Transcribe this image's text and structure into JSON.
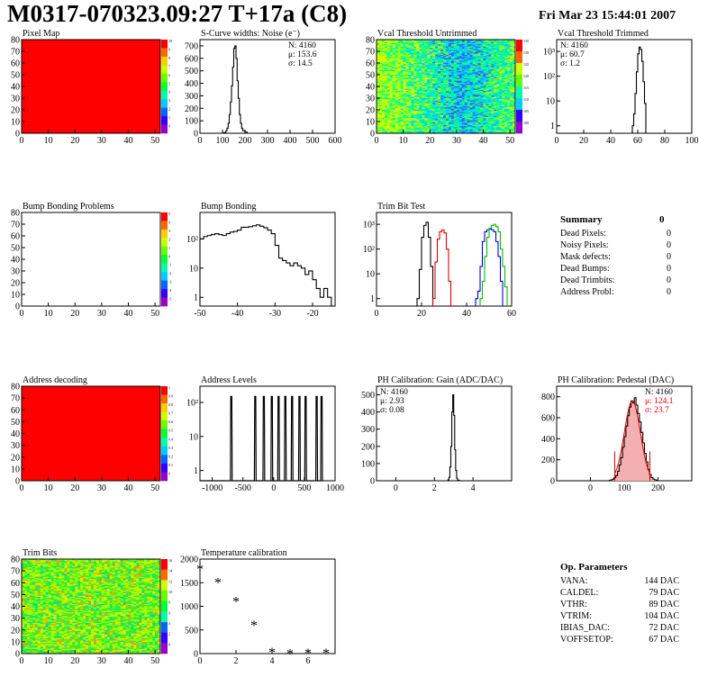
{
  "header": {
    "title": "M0317-070323.09:27 T+17a (C8)",
    "date": "Fri Mar 23 15:44:01 2007"
  },
  "colors": {
    "black": "#000000",
    "red": "#e00000",
    "green": "#00c000",
    "blue": "#0000e0",
    "map_red": "#ff0000"
  },
  "chart_data": [
    {
      "id": "pixel_map",
      "type": "heatmap",
      "title": "Pixel Map",
      "xlim": [
        0,
        52
      ],
      "ylim": [
        0,
        80
      ],
      "xticks": [
        0,
        10,
        20,
        30,
        40,
        50
      ],
      "yticks": [
        0,
        10,
        20,
        30,
        40,
        50,
        60,
        70,
        80
      ],
      "palette_labels": [
        "10",
        "9",
        "8",
        "7",
        "6",
        "5",
        "4",
        "3",
        "2",
        "1",
        "0"
      ],
      "fill": "uniform-red"
    },
    {
      "id": "scurve",
      "type": "histogram",
      "title": "S-Curve widths: Noise (e⁻)",
      "xlim": [
        0,
        600
      ],
      "ylim": [
        0,
        750
      ],
      "xticks": [
        0,
        100,
        200,
        300,
        400,
        500,
        600
      ],
      "yticks": [
        0,
        100,
        200,
        300,
        400,
        500,
        600,
        700
      ],
      "stats": [
        {
          "label": "N:",
          "value": "4160"
        },
        {
          "label": "μ:",
          "value": "153.6"
        },
        {
          "label": "σ:",
          "value": "14.5"
        }
      ],
      "series": [
        {
          "color": "#000000",
          "x": [
            95,
            105,
            115,
            120,
            125,
            130,
            135,
            140,
            145,
            150,
            155,
            160,
            165,
            170,
            175,
            180,
            185,
            190,
            200,
            210
          ],
          "y": [
            0,
            5,
            20,
            40,
            80,
            150,
            250,
            380,
            530,
            680,
            700,
            600,
            420,
            280,
            150,
            80,
            40,
            20,
            10,
            0
          ]
        }
      ]
    },
    {
      "id": "vcal_untrimmed",
      "type": "heatmap",
      "title": "Vcal Threshold Untrimmed",
      "xlim": [
        0,
        52
      ],
      "ylim": [
        0,
        80
      ],
      "xticks": [
        0,
        10,
        20,
        30,
        40,
        50
      ],
      "yticks": [
        0,
        10,
        20,
        30,
        40,
        50,
        60,
        70,
        80
      ],
      "palette_labels": [
        "135",
        "130",
        "125",
        "120",
        "115",
        "110",
        "105",
        "100"
      ],
      "fill": "noisy-green-cyan"
    },
    {
      "id": "vcal_trimmed",
      "type": "histogram",
      "title": "Vcal Threshold Trimmed",
      "xlim": [
        0,
        100
      ],
      "ylim": [
        0.5,
        3000
      ],
      "yscale": "log",
      "xticks": [
        0,
        20,
        40,
        60,
        80,
        100
      ],
      "yticks": [
        1,
        10,
        100,
        1000
      ],
      "ytick_labels": [
        "1",
        "10",
        "10²",
        "10³"
      ],
      "stats": [
        {
          "label": "N:",
          "value": "4160"
        },
        {
          "label": "μ:",
          "value": "60.7"
        },
        {
          "label": "σ:",
          "value": "1.2"
        }
      ],
      "series": [
        {
          "color": "#000000",
          "x": [
            56,
            57,
            58,
            59,
            60,
            61,
            62,
            63,
            64,
            65,
            66
          ],
          "y": [
            1,
            3,
            20,
            150,
            800,
            1500,
            1200,
            400,
            60,
            8,
            1
          ]
        }
      ]
    },
    {
      "id": "bump_problems",
      "type": "heatmap",
      "title": "Bump Bonding Problems",
      "xlim": [
        0,
        52
      ],
      "ylim": [
        0,
        80
      ],
      "xticks": [
        0,
        10,
        20,
        30,
        40,
        50
      ],
      "yticks": [
        0,
        10,
        20,
        30,
        40,
        50,
        60,
        70,
        80
      ],
      "palette_labels": [
        "5",
        "4",
        "3",
        "2",
        "1",
        "0",
        "-1",
        "-2",
        "-3",
        "-4",
        "-5"
      ],
      "fill": "empty"
    },
    {
      "id": "bump_bonding",
      "type": "histogram",
      "title": "Bump Bonding",
      "xlim": [
        -50,
        -14
      ],
      "ylim": [
        0.5,
        800
      ],
      "yscale": "log",
      "xticks": [
        -50,
        -40,
        -30,
        -20
      ],
      "yticks": [
        1,
        10,
        100
      ],
      "ytick_labels": [
        "1",
        "10",
        "10²"
      ],
      "series": [
        {
          "color": "#000000",
          "x": [
            -50,
            -49,
            -48,
            -47,
            -46,
            -45,
            -44,
            -43,
            -42,
            -41,
            -40,
            -39,
            -38,
            -37,
            -36,
            -35,
            -34,
            -33,
            -32,
            -31,
            -30,
            -29,
            -28,
            -27,
            -26,
            -25,
            -24,
            -23,
            -22,
            -21,
            -20,
            -19,
            -18,
            -17,
            -16,
            -15
          ],
          "y": [
            100,
            120,
            130,
            140,
            150,
            140,
            130,
            150,
            170,
            180,
            200,
            250,
            250,
            260,
            280,
            300,
            270,
            240,
            200,
            150,
            60,
            22,
            18,
            15,
            12,
            15,
            12,
            10,
            6,
            8,
            4,
            2,
            1,
            2,
            1,
            0.5
          ]
        }
      ]
    },
    {
      "id": "trim_bits_test",
      "type": "histogram",
      "title": "Trim Bit Test",
      "xlim": [
        0,
        60
      ],
      "ylim": [
        0.5,
        3000
      ],
      "yscale": "log",
      "xticks": [
        0,
        20,
        40,
        60
      ],
      "yticks": [
        1,
        10,
        100,
        1000
      ],
      "ytick_labels": [
        "1",
        "10",
        "10²",
        "10³"
      ],
      "series": [
        {
          "color": "#000000",
          "x": [
            18,
            19,
            20,
            21,
            22,
            23,
            24,
            25
          ],
          "y": [
            1,
            15,
            300,
            900,
            1200,
            300,
            20,
            1
          ]
        },
        {
          "color": "#e00000",
          "x": [
            25,
            26,
            27,
            28,
            29,
            30,
            31,
            32,
            33
          ],
          "y": [
            1,
            30,
            250,
            500,
            600,
            450,
            100,
            5,
            1
          ]
        },
        {
          "color": "#0000e0",
          "x": [
            44,
            45,
            46,
            47,
            48,
            49,
            50,
            51,
            52,
            53,
            54,
            55,
            56
          ],
          "y": [
            1,
            2,
            20,
            200,
            500,
            600,
            650,
            600,
            500,
            200,
            50,
            5,
            1
          ]
        },
        {
          "color": "#00c000",
          "x": [
            46,
            47,
            48,
            49,
            50,
            51,
            52,
            53,
            54,
            55,
            56,
            57,
            58
          ],
          "y": [
            1,
            5,
            50,
            300,
            700,
            900,
            1000,
            800,
            500,
            100,
            20,
            3,
            1
          ]
        }
      ]
    },
    {
      "id": "address_decoding",
      "type": "heatmap",
      "title": "Address decoding",
      "xlim": [
        0,
        52
      ],
      "ylim": [
        0,
        80
      ],
      "xticks": [
        0,
        10,
        20,
        30,
        40,
        50
      ],
      "yticks": [
        0,
        10,
        20,
        30,
        40,
        50,
        60,
        70,
        80
      ],
      "palette_labels": [
        "1",
        "0.9",
        "0.8",
        "0.7",
        "0.6",
        "0.5",
        "0.4",
        "0.3",
        "0.2",
        "0.1",
        "0"
      ],
      "fill": "uniform-red"
    },
    {
      "id": "address_levels",
      "type": "histogram",
      "title": "Address Levels",
      "xlim": [
        -1200,
        1000
      ],
      "ylim": [
        0.5,
        300
      ],
      "yscale": "log",
      "xticks": [
        -1000,
        -500,
        0,
        500,
        1000
      ],
      "yticks": [
        1,
        10,
        100
      ],
      "ytick_labels": [
        "1",
        "10",
        "10²"
      ],
      "peaks": [
        -690,
        -300,
        -160,
        -30,
        80,
        190,
        300,
        420,
        520,
        700,
        780
      ],
      "peak_height": 150,
      "series": [
        {
          "color": "#000000"
        }
      ]
    },
    {
      "id": "ph_gain",
      "type": "histogram",
      "title": "PH Calibration: Gain (ADC/DAC)",
      "xlim": [
        -1,
        6
      ],
      "ylim": [
        0,
        550
      ],
      "xticks": [
        0,
        2,
        4
      ],
      "yticks": [
        0,
        100,
        200,
        300,
        400,
        500
      ],
      "stats": [
        {
          "label": "N:",
          "value": "4160"
        },
        {
          "label": "μ:",
          "value": "2.93"
        },
        {
          "label": "σ:",
          "value": "0.08"
        }
      ],
      "series": [
        {
          "color": "#000000",
          "x": [
            2.6,
            2.7,
            2.75,
            2.8,
            2.85,
            2.9,
            2.95,
            3.0,
            3.05,
            3.1,
            3.15,
            3.2,
            3.3
          ],
          "y": [
            0,
            5,
            20,
            80,
            200,
            400,
            500,
            380,
            180,
            60,
            15,
            3,
            0
          ]
        }
      ]
    },
    {
      "id": "ph_pedestal",
      "type": "histogram",
      "title": "PH Calibration: Pedestal (DAC)",
      "xlim": [
        -100,
        300
      ],
      "ylim": [
        0,
        900
      ],
      "xticks": [
        0,
        100,
        200
      ],
      "yticks": [
        0,
        200,
        400,
        600,
        800
      ],
      "stats": [
        {
          "label": "N:",
          "value": "4160",
          "color": "#000000"
        },
        {
          "label": "μ:",
          "value": "124.1",
          "color": "#e00000"
        },
        {
          "label": "σ:",
          "value": "23.7",
          "color": "#e00000"
        }
      ],
      "fit_lines_x": [
        72,
        176
      ],
      "fit_line_top": 280,
      "series": [
        {
          "color": "#000000",
          "x": [
            55,
            60,
            65,
            70,
            75,
            80,
            85,
            90,
            95,
            100,
            105,
            110,
            115,
            120,
            125,
            130,
            135,
            140,
            145,
            150,
            155,
            160,
            165,
            170,
            175,
            180,
            185,
            190,
            195,
            200
          ],
          "y": [
            3,
            8,
            15,
            30,
            50,
            90,
            150,
            220,
            320,
            420,
            520,
            620,
            700,
            760,
            740,
            790,
            720,
            640,
            560,
            460,
            360,
            260,
            180,
            110,
            60,
            30,
            15,
            8,
            3,
            1
          ]
        }
      ]
    },
    {
      "id": "trim_bits",
      "type": "heatmap",
      "title": "Trim Bits",
      "xlim": [
        0,
        52
      ],
      "ylim": [
        0,
        80
      ],
      "xticks": [
        0,
        10,
        20,
        30,
        40,
        50
      ],
      "yticks": [
        0,
        10,
        20,
        30,
        40,
        50,
        60,
        70,
        80
      ],
      "palette_labels": [
        "16",
        "14",
        "12",
        "10",
        "8",
        "6",
        "4",
        "2",
        "0"
      ],
      "fill": "noisy-green-yellow"
    },
    {
      "id": "temperature",
      "type": "scatter",
      "title": "Temperature calibration",
      "xlim": [
        0,
        7.5
      ],
      "ylim": [
        0,
        2000
      ],
      "xticks": [
        0,
        2,
        4,
        6
      ],
      "yticks": [
        0,
        500,
        1000,
        1500,
        2000
      ],
      "series": [
        {
          "color": "#000000",
          "marker": "*",
          "x": [
            0,
            1,
            2,
            3,
            4,
            5,
            6,
            7
          ],
          "y": [
            1820,
            1530,
            1130,
            630,
            60,
            30,
            40,
            40
          ]
        }
      ]
    }
  ],
  "summary": {
    "title": "Summary",
    "total": "0",
    "rows": [
      {
        "label": "Dead Pixels:",
        "value": "0"
      },
      {
        "label": "Noisy Pixels:",
        "value": "0"
      },
      {
        "label": "Mask defects:",
        "value": "0"
      },
      {
        "label": "Dead Bumps:",
        "value": "0"
      },
      {
        "label": "Dead Trimbits:",
        "value": "0"
      },
      {
        "label": "Address Probl:",
        "value": "0"
      }
    ]
  },
  "op_params": {
    "title": "Op. Parameters",
    "rows": [
      {
        "label": "VANA:",
        "value": "144 DAC"
      },
      {
        "label": "CALDEL:",
        "value": "79 DAC"
      },
      {
        "label": "VTHR:",
        "value": "89 DAC"
      },
      {
        "label": "VTRIM:",
        "value": "104 DAC"
      },
      {
        "label": "IBIAS_DAC:",
        "value": "72 DAC"
      },
      {
        "label": "VOFFSETOP:",
        "value": "67 DAC"
      }
    ]
  }
}
